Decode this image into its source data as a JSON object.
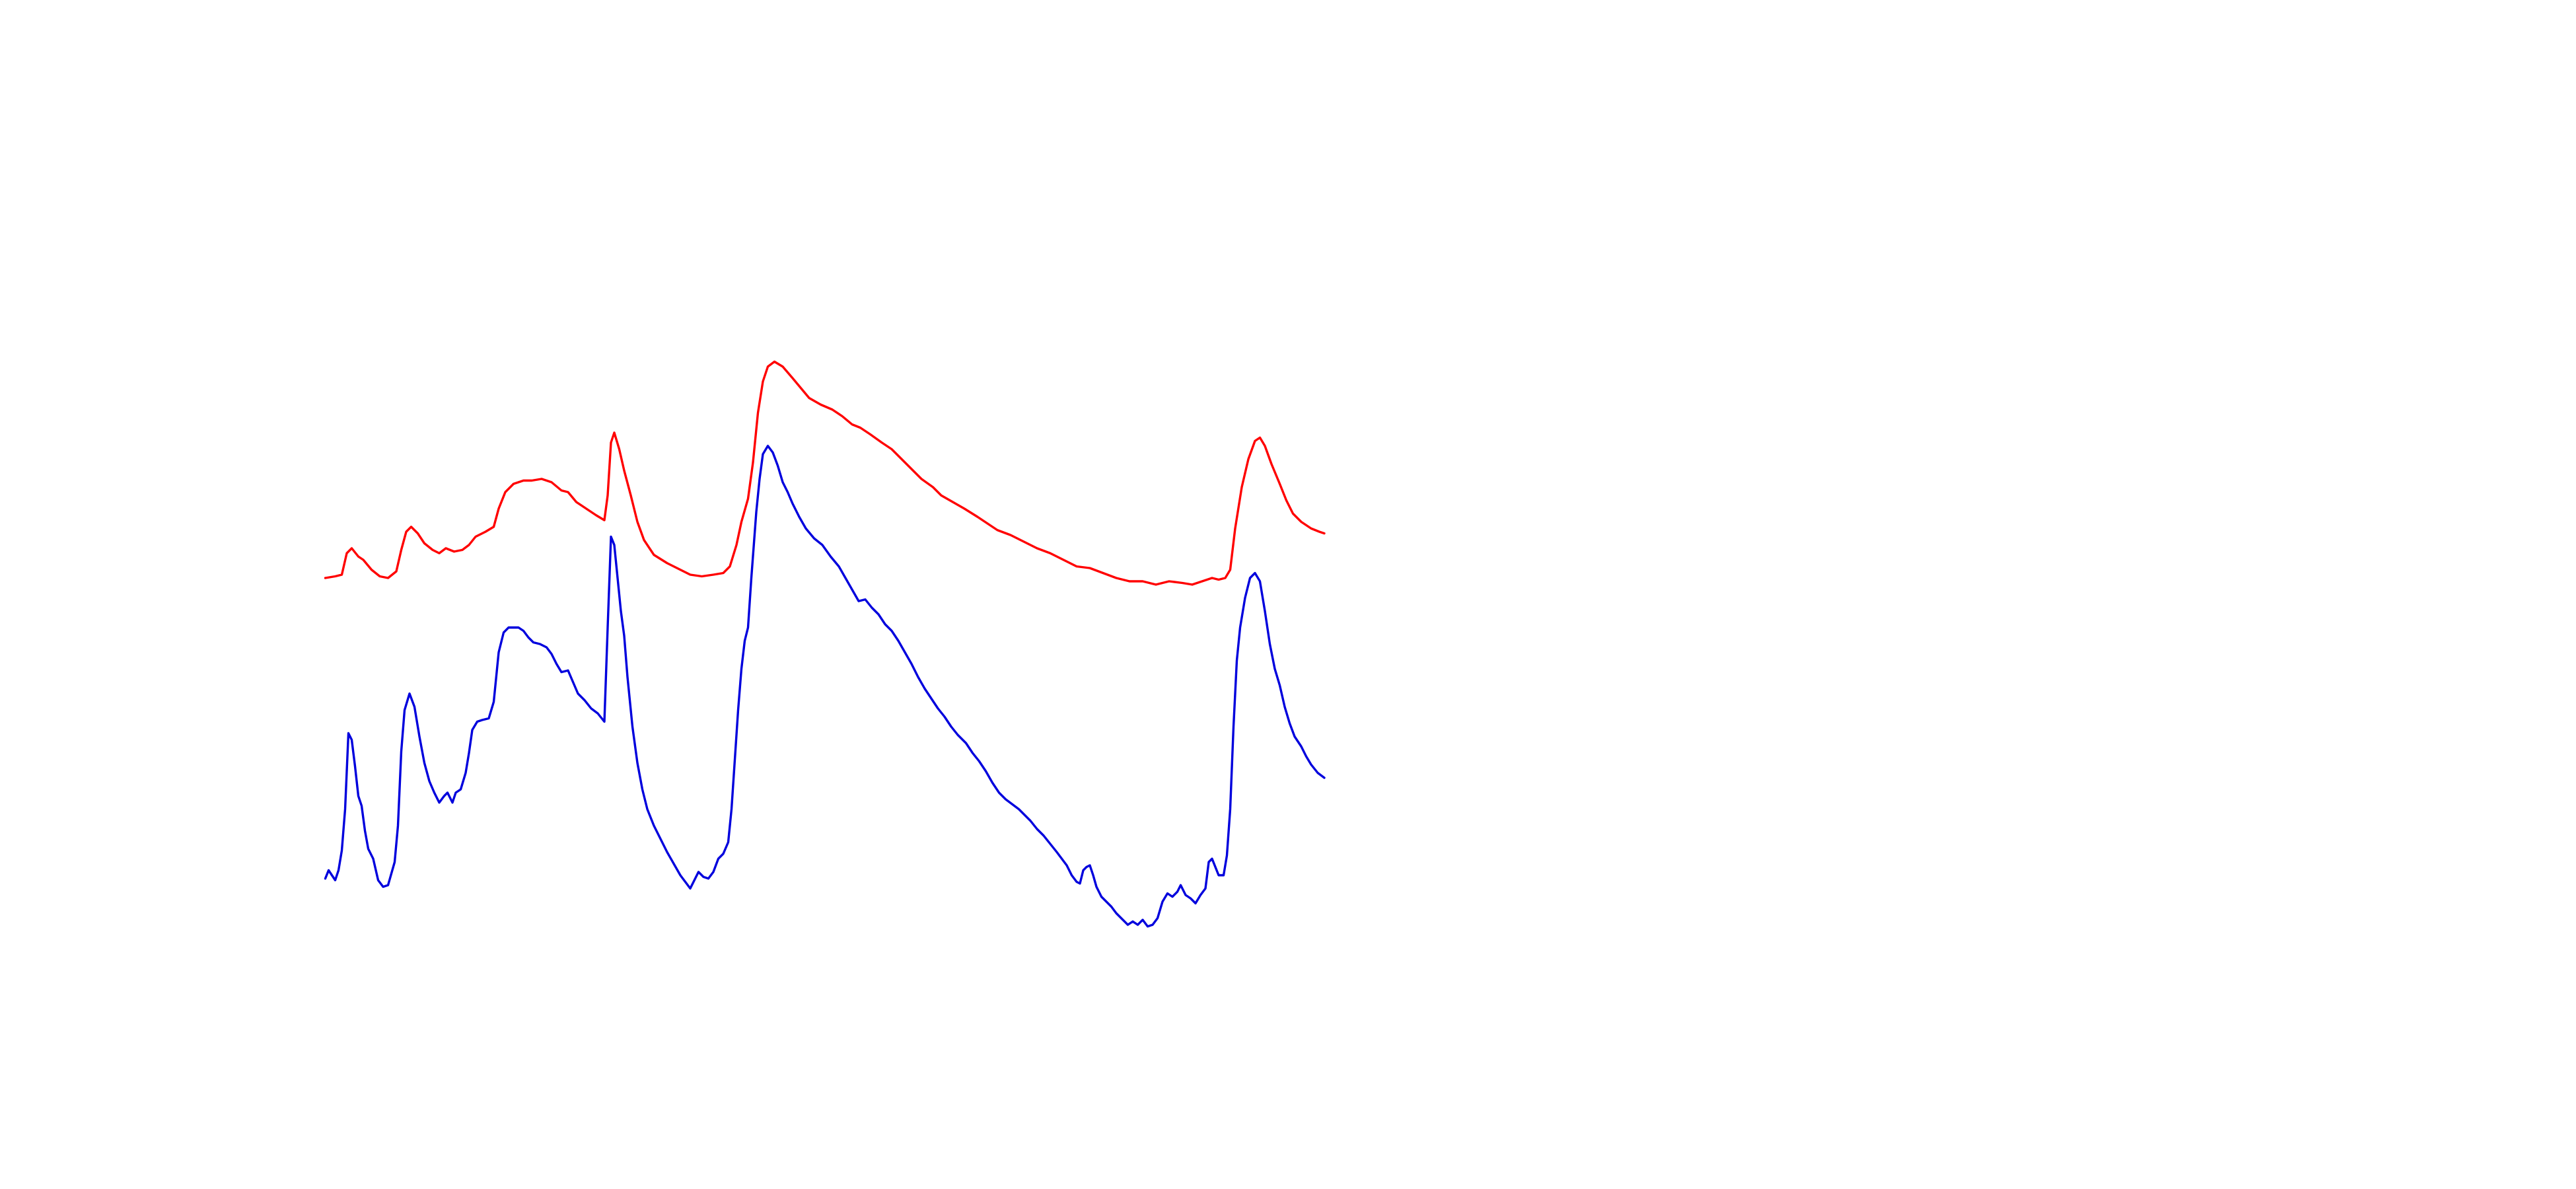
{
  "chart_data": {
    "type": "line",
    "xlim": [
      0,
      1560
    ],
    "ylim": [
      720,
      0
    ],
    "series": [
      {
        "color": "#ff0000",
        "x": [
          197,
          203,
          207,
          210,
          213,
          217,
          220,
          225,
          230,
          235,
          240,
          243,
          246,
          249,
          253,
          257,
          262,
          266,
          270,
          275,
          280,
          284,
          288,
          294,
          299,
          302,
          306,
          311,
          317,
          322,
          328,
          334,
          340,
          344,
          349,
          355,
          361,
          366,
          368,
          370,
          372,
          375,
          378,
          382,
          386,
          390,
          396,
          404,
          410,
          418,
          425,
          432,
          438,
          442,
          446,
          449,
          453,
          456,
          459,
          462,
          465,
          469,
          474,
          480,
          485,
          490,
          497,
          504,
          510,
          516,
          521,
          527,
          534,
          540,
          546,
          552,
          558,
          565,
          570,
          577,
          584,
          592,
          598,
          604,
          612,
          620,
          628,
          636,
          644,
          652,
          660,
          668,
          676,
          684,
          692,
          700,
          708,
          716,
          722,
          728,
          734,
          738,
          742,
          745,
          748,
          752,
          756,
          760,
          763,
          766,
          770,
          775,
          779,
          783,
          788,
          794,
          799,
          802
        ],
        "values": [
          350,
          349,
          348,
          335,
          332,
          337,
          339,
          345,
          349,
          350,
          346,
          333,
          322,
          319,
          323,
          329,
          333,
          335,
          332,
          334,
          333,
          330,
          325,
          322,
          319,
          308,
          298,
          293,
          291,
          291,
          290,
          292,
          297,
          298,
          304,
          308,
          312,
          315,
          300,
          268,
          262,
          272,
          285,
          300,
          316,
          327,
          336,
          341,
          344,
          348,
          349,
          348,
          347,
          343,
          330,
          316,
          302,
          280,
          250,
          231,
          222,
          219,
          222,
          229,
          235,
          241,
          245,
          248,
          252,
          257,
          259,
          263,
          268,
          272,
          278,
          284,
          290,
          295,
          300,
          304,
          308,
          313,
          317,
          321,
          324,
          328,
          332,
          335,
          339,
          343,
          344,
          347,
          350,
          352,
          352,
          354,
          352,
          353,
          354,
          352,
          350,
          351,
          350,
          345,
          320,
          295,
          278,
          267,
          265,
          270,
          281,
          293,
          303,
          311,
          316,
          320,
          322,
          323
        ]
      },
      {
        "color": "#0000dd",
        "x": [
          197,
          199,
          201,
          203,
          205,
          207,
          209,
          211,
          213,
          215,
          217,
          219,
          221,
          223,
          226,
          229,
          232,
          235,
          237,
          239,
          241,
          243,
          245,
          248,
          251,
          254,
          257,
          260,
          263,
          266,
          269,
          271,
          274,
          276,
          279,
          282,
          284,
          286,
          289,
          292,
          296,
          299,
          302,
          305,
          308,
          314,
          317,
          320,
          323,
          327,
          331,
          334,
          337,
          340,
          344,
          347,
          350,
          354,
          358,
          362,
          366,
          368,
          370,
          372,
          374,
          376,
          378,
          380,
          383,
          386,
          389,
          392,
          396,
          400,
          404,
          408,
          412,
          415,
          418,
          421,
          423,
          426,
          429,
          432,
          435,
          438,
          441,
          443,
          445,
          447,
          449,
          451,
          453,
          455,
          458,
          460,
          462,
          465,
          468,
          471,
          474,
          477,
          480,
          484,
          488,
          493,
          498,
          503,
          508,
          512,
          516,
          520,
          524,
          528,
          532,
          536,
          540,
          544,
          548,
          552,
          556,
          560,
          564,
          568,
          572,
          576,
          580,
          585,
          589,
          593,
          597,
          601,
          605,
          609,
          613,
          617,
          621,
          624,
          628,
          632,
          636,
          640,
          643,
          646,
          649,
          652,
          654,
          656,
          658,
          660,
          662,
          664,
          667,
          670,
          673,
          676,
          680,
          683,
          686,
          689,
          692,
          695,
          698,
          701,
          704,
          707,
          710,
          713,
          715,
          718,
          721,
          724,
          727,
          730,
          732,
          734,
          736,
          738,
          741,
          743,
          745,
          747,
          749,
          751,
          754,
          757,
          760,
          763,
          766,
          769,
          772,
          775,
          778,
          781,
          784,
          788,
          791,
          794,
          798,
          802
        ],
        "values": [
          532,
          527,
          530,
          533,
          527,
          515,
          490,
          444,
          448,
          464,
          482,
          488,
          503,
          514,
          520,
          533,
          537,
          536,
          529,
          522,
          500,
          455,
          430,
          420,
          428,
          446,
          462,
          473,
          480,
          486,
          482,
          480,
          486,
          480,
          478,
          468,
          456,
          442,
          437,
          436,
          435,
          425,
          395,
          383,
          380,
          380,
          382,
          386,
          389,
          390,
          392,
          396,
          402,
          407,
          406,
          413,
          420,
          424,
          429,
          432,
          437,
          380,
          325,
          330,
          350,
          370,
          385,
          410,
          440,
          462,
          478,
          490,
          500,
          508,
          516,
          523,
          530,
          534,
          538,
          532,
          528,
          531,
          532,
          528,
          520,
          517,
          510,
          490,
          460,
          430,
          405,
          388,
          380,
          350,
          310,
          290,
          275,
          270,
          274,
          282,
          292,
          298,
          305,
          313,
          320,
          326,
          330,
          337,
          343,
          350,
          357,
          364,
          363,
          368,
          372,
          378,
          382,
          388,
          395,
          402,
          410,
          417,
          423,
          429,
          434,
          440,
          445,
          450,
          456,
          461,
          467,
          474,
          480,
          484,
          487,
          490,
          494,
          497,
          502,
          506,
          511,
          516,
          520,
          524,
          530,
          534,
          535,
          527,
          525,
          524,
          530,
          537,
          543,
          546,
          549,
          553,
          557,
          560,
          558,
          560,
          557,
          561,
          560,
          556,
          546,
          541,
          543,
          540,
          536,
          542,
          544,
          547,
          542,
          538,
          522,
          520,
          525,
          530,
          530,
          518,
          490,
          440,
          400,
          380,
          362,
          350,
          347,
          352,
          370,
          390,
          405,
          415,
          428,
          438,
          446,
          452,
          458,
          463,
          468,
          471
        ]
      }
    ]
  }
}
